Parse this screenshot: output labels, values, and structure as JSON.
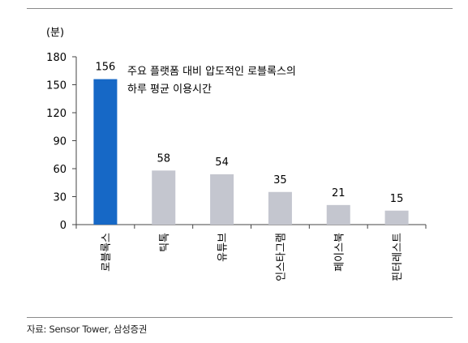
{
  "chart_data": {
    "type": "bar",
    "unit": "(분)",
    "categories": [
      "로블록스",
      "틱톡",
      "유튜브",
      "인스타그램",
      "페이스북",
      "핀터레스트"
    ],
    "values": [
      156,
      58,
      54,
      35,
      21,
      15
    ],
    "highlight_index": 0,
    "ylim": [
      0,
      180
    ],
    "yticks": [
      0,
      30,
      60,
      90,
      120,
      150,
      180
    ],
    "annotation": [
      "주요 플랫폼 대비 압도적인 로블록스의",
      "하루 평균 이용시간"
    ],
    "colors": {
      "highlight": "#1668c6",
      "default": "#c4c6cf",
      "axis": "#444444"
    },
    "grid": false,
    "legend": "none"
  },
  "source": "자료: Sensor Tower, 삼성증권"
}
